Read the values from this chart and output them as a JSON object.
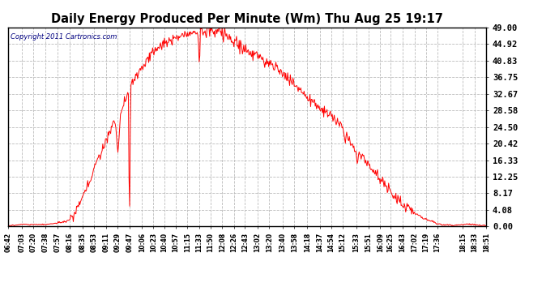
{
  "title": "Daily Energy Produced Per Minute (Wm) Thu Aug 25 19:17",
  "copyright": "Copyright 2011 Cartronics.com",
  "line_color": "#ff0000",
  "bg_color": "#ffffff",
  "plot_bg_color": "#ffffff",
  "grid_color": "#bbbbbb",
  "title_color": "#000000",
  "ytick_labels": [
    0.0,
    4.08,
    8.17,
    12.25,
    16.33,
    20.42,
    24.5,
    28.58,
    32.67,
    36.75,
    40.83,
    44.92,
    49.0
  ],
  "ymax": 49.0,
  "ymin": 0.0,
  "xtick_labels": [
    "06:42",
    "07:03",
    "07:20",
    "07:38",
    "07:57",
    "08:16",
    "08:35",
    "08:53",
    "09:11",
    "09:29",
    "09:47",
    "10:06",
    "10:23",
    "10:40",
    "10:57",
    "11:15",
    "11:33",
    "11:50",
    "12:08",
    "12:26",
    "12:43",
    "13:02",
    "13:20",
    "13:40",
    "13:58",
    "14:18",
    "14:37",
    "14:54",
    "15:12",
    "15:33",
    "15:51",
    "16:09",
    "16:25",
    "16:43",
    "17:02",
    "17:19",
    "17:36",
    "18:15",
    "18:33",
    "18:51"
  ]
}
